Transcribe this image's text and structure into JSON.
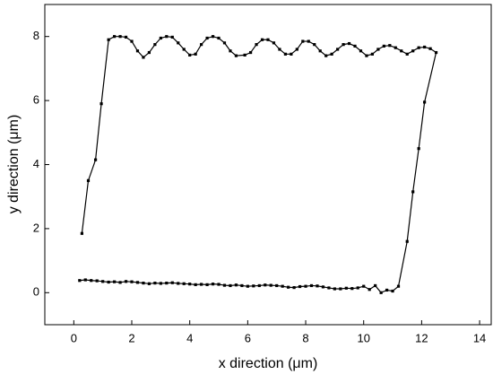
{
  "chart_data": {
    "type": "line",
    "x_label": "x direction (μm)",
    "y_label": "y direction (μm)",
    "xlim": [
      -1,
      14.4
    ],
    "ylim": [
      -1,
      9
    ],
    "xticks": [
      0,
      2,
      4,
      6,
      8,
      10,
      12,
      14
    ],
    "yticks": [
      0,
      2,
      4,
      6,
      8
    ],
    "color": "#000000",
    "x": [
      0.2,
      0.4,
      0.6,
      0.8,
      1.0,
      1.2,
      1.4,
      1.6,
      1.8,
      2.0,
      2.2,
      2.4,
      2.6,
      2.8,
      3.0,
      3.2,
      3.4,
      3.6,
      3.8,
      4.0,
      4.2,
      4.4,
      4.6,
      4.8,
      5.0,
      5.2,
      5.4,
      5.6,
      5.8,
      6.0,
      6.2,
      6.4,
      6.6,
      6.8,
      7.0,
      7.2,
      7.4,
      7.6,
      7.8,
      8.0,
      8.2,
      8.4,
      8.6,
      8.8,
      9.0,
      9.2,
      9.4,
      9.6,
      9.8,
      10.0,
      10.2,
      10.4,
      10.6,
      10.8,
      11.0,
      11.2,
      11.5,
      11.7,
      11.9,
      12.1,
      12.5,
      12.3,
      12.1,
      11.9,
      11.7,
      11.5,
      11.3,
      11.1,
      10.9,
      10.7,
      10.5,
      10.3,
      10.1,
      9.9,
      9.7,
      9.5,
      9.3,
      9.1,
      8.9,
      8.7,
      8.5,
      8.3,
      8.1,
      7.9,
      7.7,
      7.5,
      7.3,
      7.1,
      6.9,
      6.7,
      6.5,
      6.3,
      6.1,
      5.9,
      5.6,
      5.4,
      5.2,
      5.0,
      4.8,
      4.6,
      4.4,
      4.2,
      4.0,
      3.8,
      3.6,
      3.4,
      3.2,
      3.0,
      2.8,
      2.6,
      2.4,
      2.2,
      2.0,
      1.8,
      1.6,
      1.4,
      1.2,
      0.95,
      0.75,
      0.5,
      0.28
    ],
    "y": [
      0.38,
      0.4,
      0.38,
      0.37,
      0.35,
      0.33,
      0.34,
      0.32,
      0.35,
      0.34,
      0.32,
      0.3,
      0.28,
      0.3,
      0.29,
      0.3,
      0.31,
      0.29,
      0.28,
      0.27,
      0.25,
      0.26,
      0.25,
      0.27,
      0.26,
      0.23,
      0.22,
      0.24,
      0.22,
      0.2,
      0.21,
      0.22,
      0.24,
      0.23,
      0.22,
      0.2,
      0.17,
      0.16,
      0.19,
      0.2,
      0.22,
      0.21,
      0.18,
      0.15,
      0.12,
      0.12,
      0.14,
      0.13,
      0.15,
      0.2,
      0.1,
      0.22,
      0.0,
      0.08,
      0.05,
      0.2,
      1.6,
      3.15,
      4.5,
      5.95,
      7.5,
      7.62,
      7.67,
      7.65,
      7.55,
      7.45,
      7.55,
      7.65,
      7.72,
      7.7,
      7.6,
      7.45,
      7.4,
      7.55,
      7.7,
      7.78,
      7.75,
      7.6,
      7.45,
      7.4,
      7.55,
      7.75,
      7.85,
      7.85,
      7.6,
      7.45,
      7.45,
      7.6,
      7.8,
      7.9,
      7.9,
      7.75,
      7.5,
      7.42,
      7.4,
      7.55,
      7.8,
      7.95,
      8.0,
      7.95,
      7.75,
      7.45,
      7.42,
      7.6,
      7.8,
      7.98,
      8.0,
      7.95,
      7.75,
      7.5,
      7.35,
      7.55,
      7.85,
      7.98,
      8.0,
      8.0,
      7.9,
      5.9,
      4.15,
      3.5,
      1.85
    ]
  }
}
